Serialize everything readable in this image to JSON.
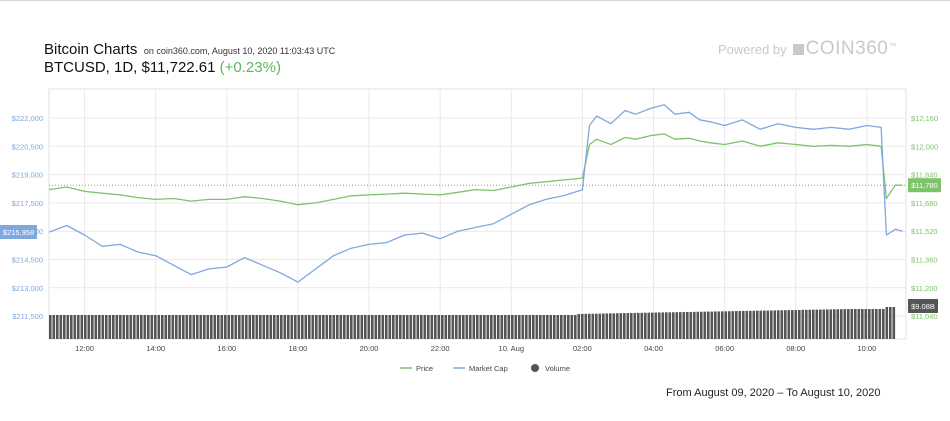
{
  "header": {
    "title": "Bitcoin Charts",
    "subtitle": "on coin360.com, August 10, 2020 11:03:43 UTC",
    "pair": "BTCUSD, 1D, $11,722.61",
    "change": "(+0.23%)",
    "brand_prefix": "Powered by",
    "brand_name": "COIN360",
    "brand_tm": "™"
  },
  "date_range": "From August 09, 2020 – To August 10, 2020",
  "colors": {
    "price": "#7cc36a",
    "market_cap": "#7ea8e0",
    "volume": "#555555",
    "grid": "#e9e9e9"
  },
  "chart_data": {
    "type": "line",
    "x_unit": "hours since 11:00",
    "x_ticks": [
      {
        "label": "12:00",
        "x": 1
      },
      {
        "label": "14:00",
        "x": 3
      },
      {
        "label": "16:00",
        "x": 5
      },
      {
        "label": "18:00",
        "x": 7
      },
      {
        "label": "20:00",
        "x": 9
      },
      {
        "label": "22:00",
        "x": 11
      },
      {
        "label": "10. Aug",
        "x": 13
      },
      {
        "label": "02:00",
        "x": 15
      },
      {
        "label": "04:00",
        "x": 17
      },
      {
        "label": "06:00",
        "x": 19
      },
      {
        "label": "08:00",
        "x": 21
      },
      {
        "label": "10:00",
        "x": 23
      }
    ],
    "xlim": [
      0,
      24.1
    ],
    "left_axis": {
      "ticks": [
        "$211,500",
        "$213,000",
        "$214,500",
        "$216,000",
        "$217,500",
        "$219,000",
        "$220,500",
        "$222,000"
      ],
      "current": "$215,958"
    },
    "right_axis": {
      "ticks": [
        "$11,040",
        "$11,200",
        "$11,360",
        "$11,520",
        "$11,680",
        "$11,840",
        "$12,000",
        "$12,160"
      ],
      "current_price": "$11,780",
      "current_volume": "$9.08B"
    },
    "legend": [
      {
        "name": "Price",
        "key": "price",
        "marker": "line"
      },
      {
        "name": "Market Cap",
        "key": "market_cap",
        "marker": "line"
      },
      {
        "name": "Volume",
        "key": "volume",
        "marker": "dot"
      }
    ],
    "legend_placement": "bottom-center",
    "grid": true,
    "series": [
      {
        "name": "Price",
        "key": "price",
        "x": [
          0,
          0.5,
          1.0,
          1.5,
          2.0,
          2.5,
          3.0,
          3.5,
          4.0,
          4.5,
          5.0,
          5.5,
          6.0,
          6.5,
          7.0,
          7.5,
          8.0,
          8.5,
          9.0,
          9.5,
          10.0,
          10.5,
          11.0,
          11.5,
          12.0,
          12.5,
          13.0,
          13.5,
          14.0,
          14.5,
          15.0,
          15.2,
          15.4,
          15.8,
          16.2,
          16.5,
          16.9,
          17.3,
          17.6,
          18.0,
          18.3,
          18.6,
          19.0,
          19.5,
          20.0,
          20.5,
          21.0,
          21.5,
          22.0,
          22.5,
          23.0,
          23.4,
          23.55,
          23.8,
          24.0
        ],
        "y": [
          11755,
          11770,
          11745,
          11735,
          11725,
          11710,
          11700,
          11705,
          11690,
          11700,
          11700,
          11715,
          11705,
          11690,
          11670,
          11680,
          11700,
          11720,
          11725,
          11730,
          11735,
          11730,
          11725,
          11740,
          11755,
          11750,
          11770,
          11790,
          11800,
          11810,
          11820,
          12010,
          12040,
          12010,
          12050,
          12040,
          12060,
          12070,
          12040,
          12045,
          12030,
          12020,
          12010,
          12030,
          12000,
          12020,
          12010,
          12000,
          12005,
          12000,
          12010,
          12000,
          11705,
          11780,
          11780
        ]
      },
      {
        "name": "Market Cap",
        "key": "market_cap",
        "x": [
          0,
          0.5,
          1.0,
          1.5,
          2.0,
          2.5,
          3.0,
          3.5,
          4.0,
          4.5,
          5.0,
          5.5,
          6.0,
          6.5,
          7.0,
          7.5,
          8.0,
          8.5,
          9.0,
          9.5,
          10.0,
          10.5,
          11.0,
          11.5,
          12.0,
          12.5,
          13.0,
          13.5,
          14.0,
          14.5,
          15.0,
          15.2,
          15.4,
          15.8,
          16.2,
          16.5,
          16.9,
          17.3,
          17.6,
          18.0,
          18.3,
          18.6,
          19.0,
          19.5,
          20.0,
          20.5,
          21.0,
          21.5,
          22.0,
          22.5,
          23.0,
          23.4,
          23.55,
          23.8,
          24.0
        ],
        "y": [
          215950,
          216300,
          215800,
          215200,
          215300,
          214900,
          214700,
          214200,
          213700,
          214000,
          214100,
          214600,
          214200,
          213800,
          213300,
          214000,
          214700,
          215100,
          215300,
          215400,
          215800,
          215900,
          215600,
          216000,
          216200,
          216400,
          216900,
          217400,
          217700,
          217900,
          218200,
          221600,
          222100,
          221700,
          222400,
          222200,
          222500,
          222700,
          222200,
          222300,
          221900,
          221800,
          221600,
          221900,
          221400,
          221700,
          221500,
          221400,
          221500,
          221400,
          221600,
          221500,
          215800,
          216100,
          216000
        ]
      }
    ]
  }
}
